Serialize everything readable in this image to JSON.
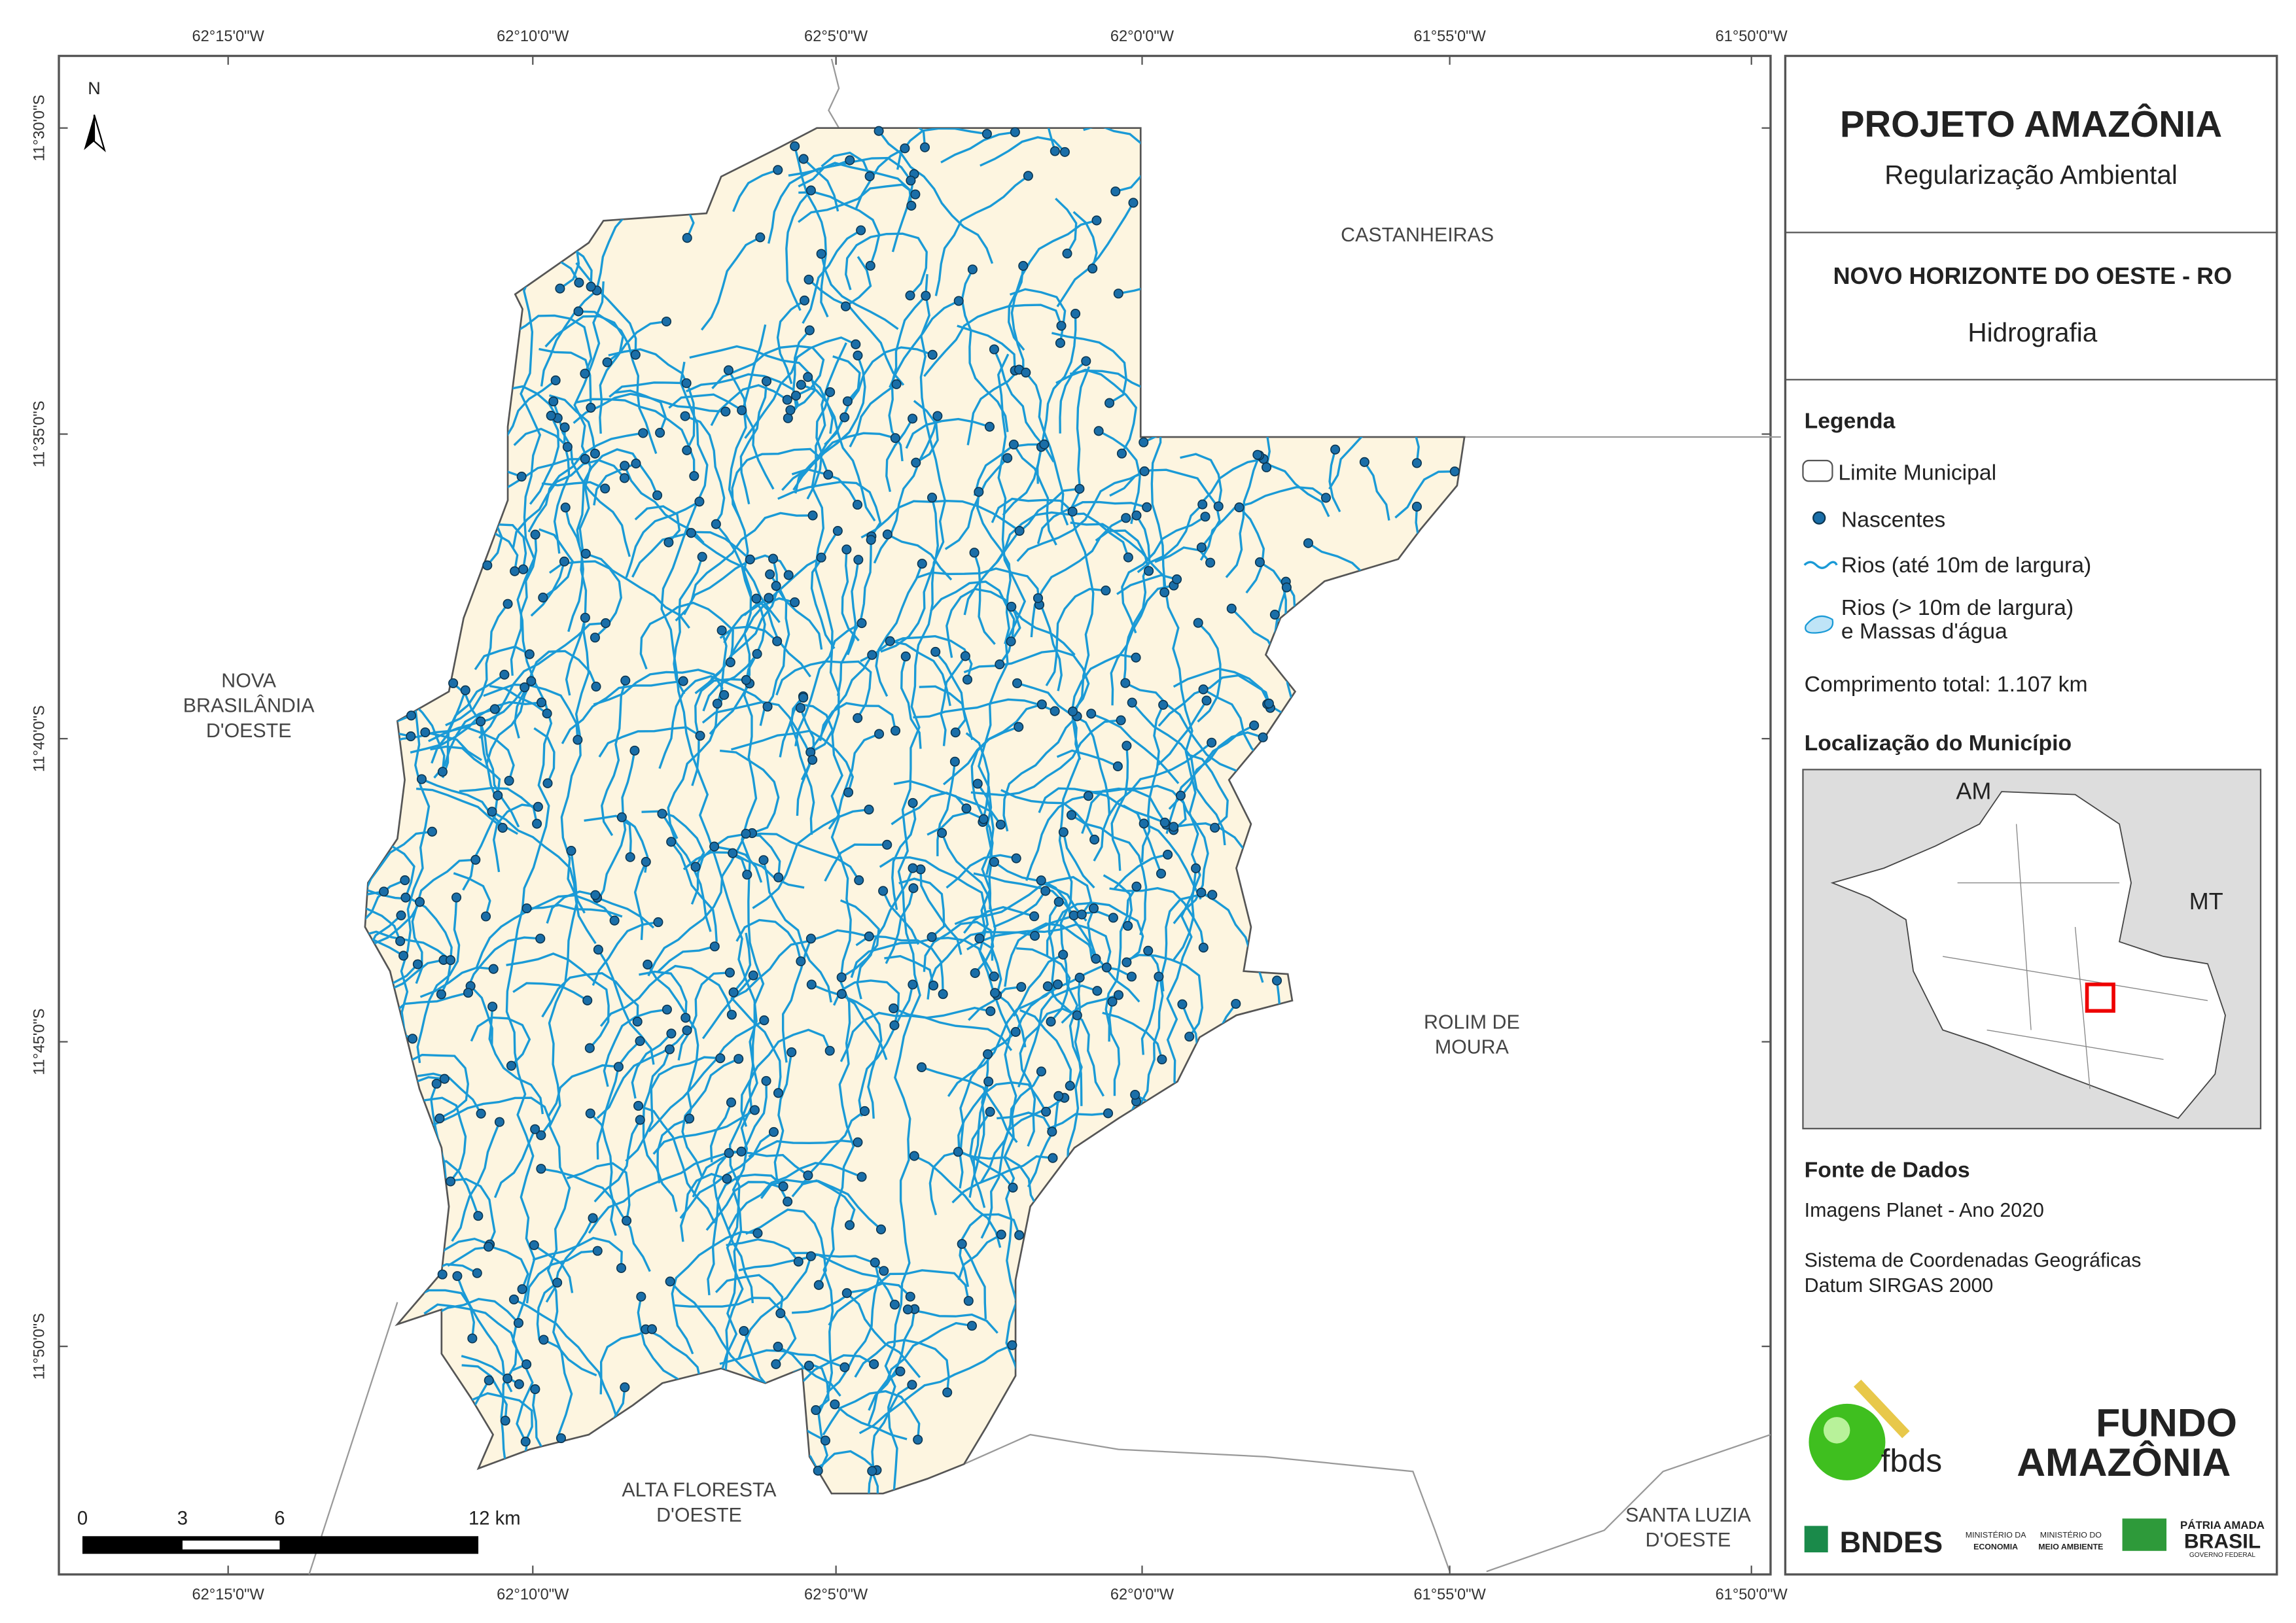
{
  "map": {
    "longitude_labels": [
      "62°15'0\"W",
      "62°10'0\"W",
      "62°5'0\"W",
      "62°0'0\"W",
      "61°55'0\"W",
      "61°50'0\"W"
    ],
    "latitude_labels": [
      "11°30'0\"S",
      "11°35'0\"S",
      "11°40'0\"S",
      "11°45'0\"S",
      "11°50'0\"S"
    ],
    "north": "N",
    "neighbors": [
      [
        "CASTANHEIRAS"
      ],
      [
        "NOVA",
        "BRASILÂNDIA",
        "D'OESTE"
      ],
      [
        "ROLIM DE",
        "MOURA"
      ],
      [
        "ALTA FLORESTA",
        "D'OESTE"
      ],
      [
        "SANTA LUZIA",
        "D'OESTE"
      ]
    ],
    "scale_bar": [
      "0",
      "3",
      "6",
      "12 km"
    ]
  },
  "header": {
    "title": "PROJETO AMAZÔNIA",
    "subtitle": "Regularização Ambiental"
  },
  "map_title": {
    "municipality": "NOVO HORIZONTE DO OESTE - RO",
    "theme": "Hidrografia"
  },
  "legend": {
    "title": "Legenda",
    "items": [
      [
        "Limite Municipal"
      ],
      [
        "Nascentes"
      ],
      [
        "Rios (até 10m de largura)"
      ],
      [
        "Rios (> 10m de largura)",
        "e Massas d'água"
      ]
    ],
    "total": "Comprimento total:  1.107 km"
  },
  "location": {
    "title": "Localização do Município",
    "labels": [
      "AM",
      "MT"
    ]
  },
  "sources": {
    "title": "Fonte de Dados",
    "lines": [
      "Imagens Planet - Ano 2020",
      "Sistema de Coordenadas Geográficas",
      "Datum SIRGAS 2000"
    ]
  },
  "logos": {
    "fbds": "fbds",
    "fundo": "FUNDO",
    "amazonia": "AMAZÔNIA",
    "bndes": "BNDES",
    "economia": [
      "MINISTÉRIO DA",
      "ECONOMIA"
    ],
    "meio_ambiente": [
      "MINISTÉRIO DO",
      "MEIO AMBIENTE"
    ],
    "brasil": [
      "PÁTRIA AMADA",
      "BRASIL",
      "GOVERNO FEDERAL"
    ]
  }
}
